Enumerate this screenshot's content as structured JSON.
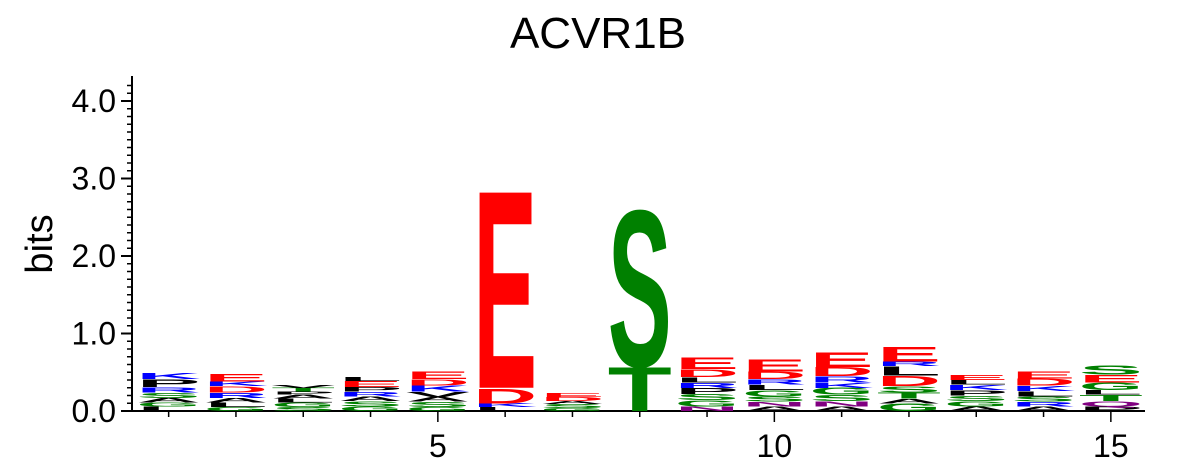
{
  "chart_data": {
    "type": "sequence-logo",
    "title": "ACVR1B",
    "xlabel": "",
    "ylabel": "bits",
    "ylim": [
      0,
      4.3
    ],
    "yticks": [
      "0.0",
      "1.0",
      "2.0",
      "3.0",
      "4.0"
    ],
    "xticks": [
      "5",
      "10",
      "15"
    ],
    "xtick_positions": [
      5,
      10,
      15
    ],
    "positions": [
      {
        "pos": 1,
        "letters": [
          {
            "l": "L",
            "v": 0.06
          },
          {
            "l": "G",
            "v": 0.05
          },
          {
            "l": "A",
            "v": 0.06
          },
          {
            "l": "S",
            "v": 0.07
          },
          {
            "l": "R",
            "v": 0.07
          },
          {
            "l": "P",
            "v": 0.1
          },
          {
            "l": "K",
            "v": 0.08
          }
        ]
      },
      {
        "pos": 2,
        "letters": [
          {
            "l": "G",
            "v": 0.05
          },
          {
            "l": "L",
            "v": 0.06
          },
          {
            "l": "A",
            "v": 0.06
          },
          {
            "l": "R",
            "v": 0.07
          },
          {
            "l": "D",
            "v": 0.08
          },
          {
            "l": "K",
            "v": 0.06
          },
          {
            "l": "E",
            "v": 0.1
          }
        ]
      },
      {
        "pos": 3,
        "letters": [
          {
            "l": "S",
            "v": 0.05
          },
          {
            "l": "G",
            "v": 0.06
          },
          {
            "l": "L",
            "v": 0.05
          },
          {
            "l": "A",
            "v": 0.05
          },
          {
            "l": "P",
            "v": 0.04
          },
          {
            "l": "T",
            "v": 0.05
          },
          {
            "l": "V",
            "v": 0.04
          }
        ]
      },
      {
        "pos": 4,
        "letters": [
          {
            "l": "G",
            "v": 0.06
          },
          {
            "l": "S",
            "v": 0.07
          },
          {
            "l": "A",
            "v": 0.06
          },
          {
            "l": "R",
            "v": 0.06
          },
          {
            "l": "P",
            "v": 0.06
          },
          {
            "l": "E",
            "v": 0.08
          },
          {
            "l": "L",
            "v": 0.05
          }
        ]
      },
      {
        "pos": 5,
        "letters": [
          {
            "l": "G",
            "v": 0.05
          },
          {
            "l": "S",
            "v": 0.07
          },
          {
            "l": "A",
            "v": 0.06
          },
          {
            "l": "V",
            "v": 0.07
          },
          {
            "l": "K",
            "v": 0.08
          },
          {
            "l": "D",
            "v": 0.08
          },
          {
            "l": "E",
            "v": 0.1
          }
        ]
      },
      {
        "pos": 6,
        "letters": [
          {
            "l": "L",
            "v": 0.05
          },
          {
            "l": "K",
            "v": 0.05
          },
          {
            "l": "D",
            "v": 0.2
          },
          {
            "l": "E",
            "v": 2.62
          }
        ]
      },
      {
        "pos": 7,
        "letters": [
          {
            "l": "G",
            "v": 0.04
          },
          {
            "l": "S",
            "v": 0.05
          },
          {
            "l": "A",
            "v": 0.04
          },
          {
            "l": "D",
            "v": 0.05
          },
          {
            "l": "E",
            "v": 0.05
          }
        ]
      },
      {
        "pos": 8,
        "letters": [
          {
            "l": "T",
            "v": 0.58
          },
          {
            "l": "S",
            "v": 2.07
          }
        ]
      },
      {
        "pos": 9,
        "letters": [
          {
            "l": "N",
            "v": 0.06
          },
          {
            "l": "G",
            "v": 0.08
          },
          {
            "l": "S",
            "v": 0.08
          },
          {
            "l": "P",
            "v": 0.08
          },
          {
            "l": "R",
            "v": 0.07
          },
          {
            "l": "L",
            "v": 0.07
          },
          {
            "l": "D",
            "v": 0.1
          },
          {
            "l": "E",
            "v": 0.15
          }
        ]
      },
      {
        "pos": 10,
        "letters": [
          {
            "l": "A",
            "v": 0.06
          },
          {
            "l": "N",
            "v": 0.06
          },
          {
            "l": "S",
            "v": 0.07
          },
          {
            "l": "G",
            "v": 0.08
          },
          {
            "l": "L",
            "v": 0.07
          },
          {
            "l": "R",
            "v": 0.07
          },
          {
            "l": "D",
            "v": 0.1
          },
          {
            "l": "E",
            "v": 0.16
          }
        ]
      },
      {
        "pos": 11,
        "letters": [
          {
            "l": "A",
            "v": 0.06
          },
          {
            "l": "N",
            "v": 0.07
          },
          {
            "l": "S",
            "v": 0.08
          },
          {
            "l": "G",
            "v": 0.09
          },
          {
            "l": "K",
            "v": 0.07
          },
          {
            "l": "R",
            "v": 0.08
          },
          {
            "l": "D",
            "v": 0.12
          },
          {
            "l": "E",
            "v": 0.2
          }
        ]
      },
      {
        "pos": 12,
        "letters": [
          {
            "l": "G",
            "v": 0.1
          },
          {
            "l": "A",
            "v": 0.06
          },
          {
            "l": "T",
            "v": 0.08
          },
          {
            "l": "S",
            "v": 0.08
          },
          {
            "l": "D",
            "v": 0.14
          },
          {
            "l": "L",
            "v": 0.12
          },
          {
            "l": "R",
            "v": 0.06
          },
          {
            "l": "E",
            "v": 0.2
          }
        ]
      },
      {
        "pos": 13,
        "letters": [
          {
            "l": "A",
            "v": 0.06
          },
          {
            "l": "G",
            "v": 0.07
          },
          {
            "l": "S",
            "v": 0.07
          },
          {
            "l": "P",
            "v": 0.07
          },
          {
            "l": "K",
            "v": 0.07
          },
          {
            "l": "L",
            "v": 0.06
          },
          {
            "l": "E",
            "v": 0.07
          }
        ]
      },
      {
        "pos": 14,
        "letters": [
          {
            "l": "A",
            "v": 0.06
          },
          {
            "l": "R",
            "v": 0.06
          },
          {
            "l": "S",
            "v": 0.07
          },
          {
            "l": "L",
            "v": 0.07
          },
          {
            "l": "K",
            "v": 0.07
          },
          {
            "l": "D",
            "v": 0.09
          },
          {
            "l": "E",
            "v": 0.09
          }
        ]
      },
      {
        "pos": 15,
        "letters": [
          {
            "l": "P",
            "v": 0.06
          },
          {
            "l": "Q",
            "v": 0.07
          },
          {
            "l": "T",
            "v": 0.08
          },
          {
            "l": "L",
            "v": 0.06
          },
          {
            "l": "G",
            "v": 0.1
          },
          {
            "l": "E",
            "v": 0.1
          },
          {
            "l": "S",
            "v": 0.12
          }
        ]
      }
    ],
    "letter_colors": {
      "E": "#ff0000",
      "D": "#ff0000",
      "S": "#008000",
      "T": "#008000",
      "G": "#008000",
      "N": "#800080",
      "Q": "#800080",
      "K": "#0000ff",
      "R": "#0000ff",
      "H": "#0000ff",
      "L": "#000000",
      "A": "#000000",
      "V": "#000000",
      "P": "#000000",
      "I": "#000000",
      "M": "#000000",
      "F": "#000000",
      "W": "#000000",
      "Y": "#000000",
      "C": "#000000"
    }
  }
}
